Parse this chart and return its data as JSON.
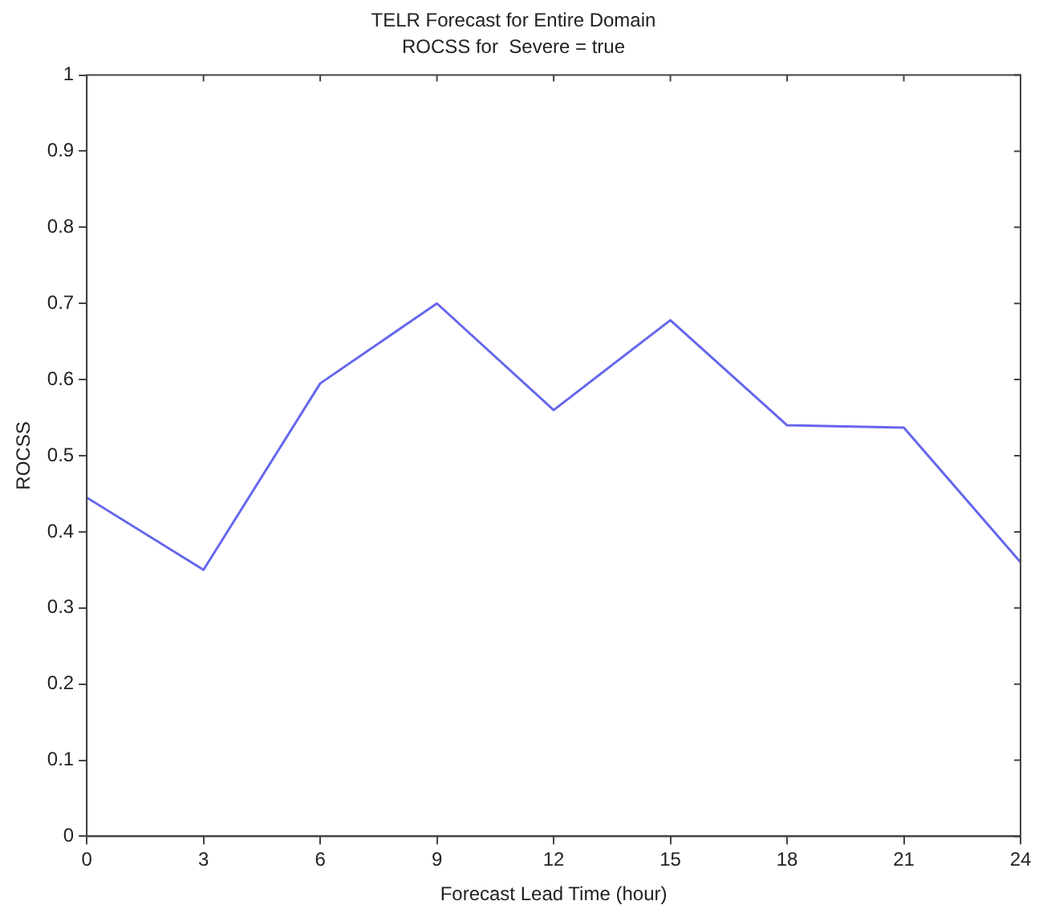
{
  "chart_data": {
    "type": "line",
    "title": "TELR Forecast for Entire Domain",
    "subtitle": "ROCSS for  Severe = true",
    "xlabel": "Forecast Lead Time (hour)",
    "ylabel": "ROCSS",
    "x": [
      0,
      3,
      6,
      9,
      12,
      15,
      18,
      21,
      24
    ],
    "series": [
      {
        "color": "#6666ee",
        "values": [
          0.445,
          0.35,
          0.595,
          0.7,
          0.56,
          0.678,
          0.54,
          0.537,
          0.36
        ]
      }
    ],
    "xlim": [
      0,
      24
    ],
    "xticks": [
      0,
      3,
      6,
      9,
      12,
      15,
      18,
      21,
      24
    ],
    "ylim": [
      0,
      1
    ],
    "yticks": [
      0,
      0.1,
      0.2,
      0.3,
      0.4,
      0.5,
      0.6,
      0.7,
      0.8,
      0.9,
      1
    ],
    "grid": false,
    "legend": false,
    "marker": "none",
    "line_style": "solid"
  }
}
